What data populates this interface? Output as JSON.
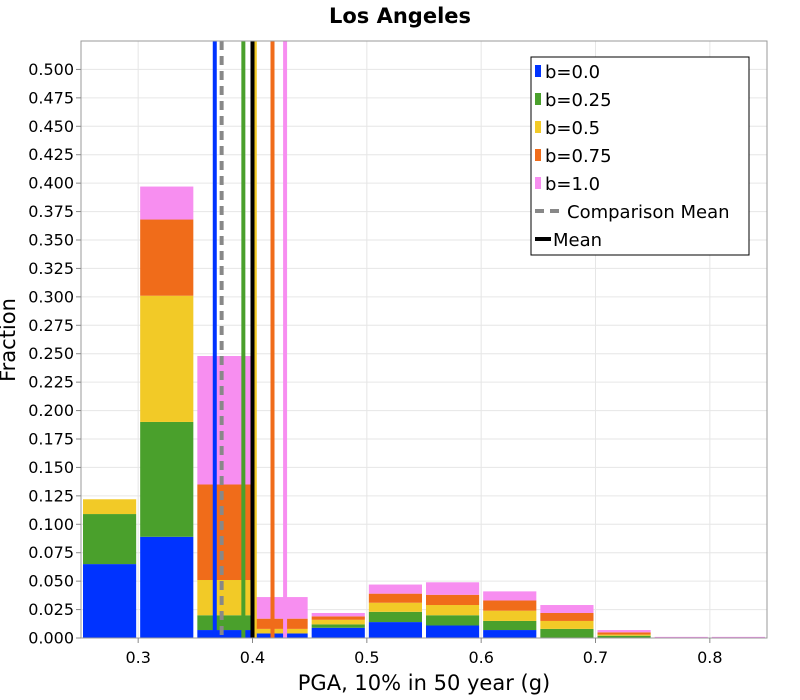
{
  "chart_data": {
    "type": "bar",
    "stacked": true,
    "title": "Los Angeles",
    "xlabel": "PGA, 10% in 50 year (g)",
    "ylabel": "Fraction",
    "xlim": [
      0.25,
      0.85
    ],
    "ylim": [
      0,
      0.525
    ],
    "bin_width": 0.05,
    "grid": true,
    "legend_position": "top-right",
    "x_ticks": [
      0.3,
      0.4,
      0.5,
      0.6,
      0.7,
      0.8
    ],
    "x_tick_labels": [
      "0.3",
      "0.4",
      "0.5",
      "0.6",
      "0.7",
      "0.8"
    ],
    "y_ticks": [
      0,
      0.025,
      0.05,
      0.075,
      0.1,
      0.125,
      0.15,
      0.175,
      0.2,
      0.225,
      0.25,
      0.275,
      0.3,
      0.325,
      0.35,
      0.375,
      0.4,
      0.425,
      0.45,
      0.475,
      0.5
    ],
    "y_tick_labels": [
      "0.000",
      "0.025",
      "0.050",
      "0.075",
      "0.100",
      "0.125",
      "0.150",
      "0.175",
      "0.200",
      "0.225",
      "0.250",
      "0.275",
      "0.300",
      "0.325",
      "0.350",
      "0.375",
      "0.400",
      "0.425",
      "0.450",
      "0.475",
      "0.500"
    ],
    "bin_centers": [
      0.275,
      0.325,
      0.375,
      0.425,
      0.475,
      0.525,
      0.575,
      0.625,
      0.675,
      0.725,
      0.775,
      0.825
    ],
    "series": [
      {
        "name": "b=0.0",
        "color": "#0033ff",
        "values": [
          0.065,
          0.089,
          0.007,
          0.004,
          0.009,
          0.014,
          0.011,
          0.007,
          0.0,
          0.0,
          0.0,
          0.0
        ]
      },
      {
        "name": "b=0.25",
        "color": "#4aa02c",
        "values": [
          0.044,
          0.101,
          0.013,
          0.0,
          0.003,
          0.009,
          0.009,
          0.008,
          0.008,
          0.002,
          0.0,
          0.0
        ]
      },
      {
        "name": "b=0.5",
        "color": "#f2ca27",
        "values": [
          0.013,
          0.111,
          0.031,
          0.004,
          0.004,
          0.008,
          0.009,
          0.009,
          0.007,
          0.001,
          0.0,
          0.0
        ]
      },
      {
        "name": "b=0.75",
        "color": "#f06c1a",
        "values": [
          0.0,
          0.067,
          0.084,
          0.009,
          0.003,
          0.008,
          0.009,
          0.009,
          0.007,
          0.002,
          0.0,
          0.0
        ]
      },
      {
        "name": "b=1.0",
        "color": "#f78ef0",
        "values": [
          0.0,
          0.029,
          0.113,
          0.019,
          0.003,
          0.008,
          0.011,
          0.008,
          0.007,
          0.002,
          0.001,
          0.001
        ]
      }
    ],
    "mean_lines": [
      {
        "x": 0.367,
        "color": "#0033ff",
        "style": "solid"
      },
      {
        "x": 0.392,
        "color": "#4aa02c",
        "style": "solid"
      },
      {
        "x": 0.402,
        "color": "#f2ca27",
        "style": "solid"
      },
      {
        "x": 0.4175,
        "color": "#f06c1a",
        "style": "solid"
      },
      {
        "x": 0.4285,
        "color": "#f78ef0",
        "style": "solid"
      },
      {
        "x": 0.373,
        "color": "#888888",
        "style": "dashed"
      },
      {
        "x": 0.4,
        "color": "#000000",
        "style": "solid"
      }
    ],
    "legend": [
      {
        "label": "b=0.0",
        "color": "#0033ff",
        "kind": "box"
      },
      {
        "label": "b=0.25",
        "color": "#4aa02c",
        "kind": "box"
      },
      {
        "label": "b=0.5",
        "color": "#f2ca27",
        "kind": "box"
      },
      {
        "label": "b=0.75",
        "color": "#f06c1a",
        "kind": "box"
      },
      {
        "label": "b=1.0",
        "color": "#f78ef0",
        "kind": "box"
      },
      {
        "label": "Comparison Mean",
        "color": "#888888",
        "kind": "dash"
      },
      {
        "label": "Mean",
        "color": "#000000",
        "kind": "line"
      }
    ]
  }
}
